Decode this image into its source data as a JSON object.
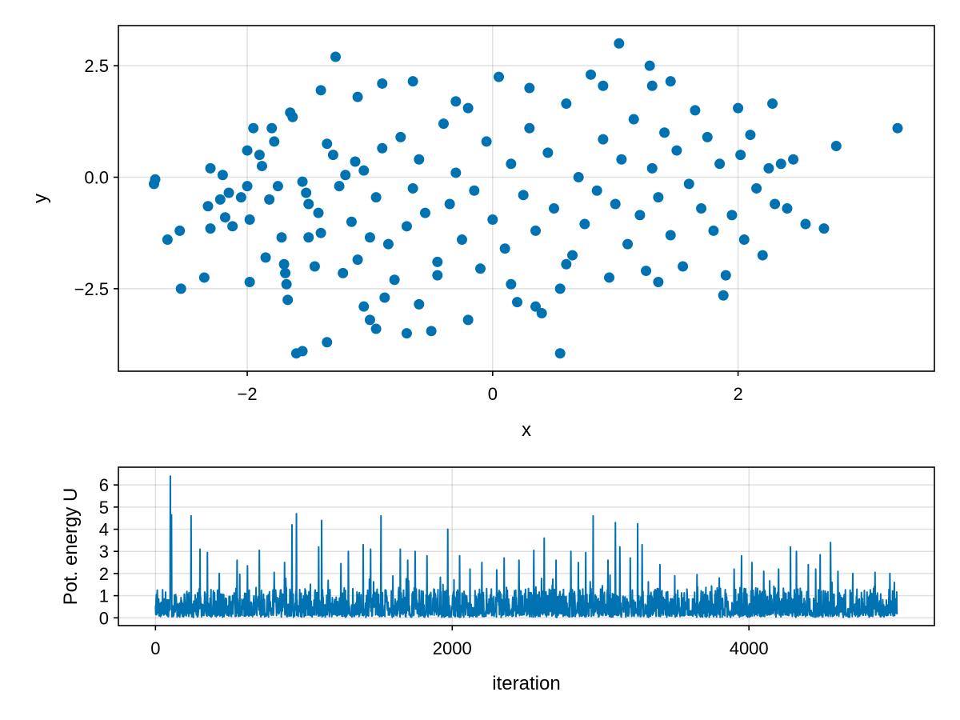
{
  "chart_data": [
    {
      "type": "scatter",
      "xlabel": "x",
      "ylabel": "y",
      "xlim": [
        -3.05,
        3.6
      ],
      "ylim": [
        -4.35,
        3.4
      ],
      "xticks": [
        -2,
        0,
        2
      ],
      "xtick_labels": [
        "−2",
        "0",
        "2"
      ],
      "yticks": [
        -2.5,
        0.0,
        2.5
      ],
      "ytick_labels": [
        "−2.5",
        "0.0",
        "2.5"
      ],
      "grid": true,
      "color": "#0072b2",
      "points": [
        [
          -2.75,
          -0.05
        ],
        [
          -2.76,
          -0.15
        ],
        [
          -2.65,
          -1.4
        ],
        [
          -2.55,
          -1.2
        ],
        [
          -2.54,
          -2.5
        ],
        [
          -2.35,
          -2.25
        ],
        [
          -2.32,
          -0.65
        ],
        [
          -2.3,
          0.2
        ],
        [
          -2.3,
          -1.15
        ],
        [
          -2.22,
          -0.5
        ],
        [
          -2.2,
          0.05
        ],
        [
          -2.18,
          -0.9
        ],
        [
          -2.15,
          -0.35
        ],
        [
          -2.12,
          -1.1
        ],
        [
          -2.05,
          -0.45
        ],
        [
          -2.0,
          -0.2
        ],
        [
          -2.0,
          0.6
        ],
        [
          -1.98,
          -0.95
        ],
        [
          -1.98,
          -2.35
        ],
        [
          -1.95,
          1.1
        ],
        [
          -1.9,
          0.5
        ],
        [
          -1.88,
          0.25
        ],
        [
          -1.85,
          -1.8
        ],
        [
          -1.82,
          -0.5
        ],
        [
          -1.8,
          1.1
        ],
        [
          -1.78,
          0.8
        ],
        [
          -1.75,
          -0.2
        ],
        [
          -1.72,
          -1.35
        ],
        [
          -1.7,
          -1.95
        ],
        [
          -1.69,
          -2.15
        ],
        [
          -1.68,
          -2.4
        ],
        [
          -1.67,
          -2.75
        ],
        [
          -1.65,
          1.45
        ],
        [
          -1.63,
          1.35
        ],
        [
          -1.6,
          -3.95
        ],
        [
          -1.55,
          -3.9
        ],
        [
          -1.55,
          -0.1
        ],
        [
          -1.52,
          -0.35
        ],
        [
          -1.5,
          -0.6
        ],
        [
          -1.5,
          -1.35
        ],
        [
          -1.45,
          -2.0
        ],
        [
          -1.42,
          -0.8
        ],
        [
          -1.4,
          -1.25
        ],
        [
          -1.35,
          -3.7
        ],
        [
          -1.35,
          0.75
        ],
        [
          -1.3,
          0.5
        ],
        [
          -1.25,
          -0.2
        ],
        [
          -1.22,
          -2.15
        ],
        [
          -1.2,
          0.05
        ],
        [
          -1.15,
          -1.0
        ],
        [
          -1.12,
          0.35
        ],
        [
          -1.1,
          -1.85
        ],
        [
          -1.05,
          0.15
        ],
        [
          -1.0,
          -1.35
        ],
        [
          -0.95,
          -0.45
        ],
        [
          -0.9,
          0.65
        ],
        [
          -0.88,
          -2.7
        ],
        [
          -0.85,
          -1.5
        ],
        [
          -0.8,
          -2.3
        ],
        [
          -0.75,
          0.9
        ],
        [
          -0.7,
          -1.1
        ],
        [
          -0.65,
          -0.25
        ],
        [
          -0.6,
          0.4
        ],
        [
          -0.55,
          -0.8
        ],
        [
          -0.5,
          -3.45
        ],
        [
          -0.45,
          -1.9
        ],
        [
          -0.4,
          1.2
        ],
        [
          -0.35,
          -0.6
        ],
        [
          -0.3,
          0.1
        ],
        [
          -0.25,
          -1.4
        ],
        [
          -0.2,
          1.55
        ],
        [
          -0.15,
          -0.3
        ],
        [
          -0.1,
          -2.05
        ],
        [
          -0.05,
          0.8
        ],
        [
          0.0,
          -0.95
        ],
        [
          0.05,
          2.25
        ],
        [
          0.1,
          -1.6
        ],
        [
          0.15,
          0.3
        ],
        [
          0.2,
          -2.8
        ],
        [
          0.25,
          -0.4
        ],
        [
          0.3,
          1.1
        ],
        [
          0.35,
          -1.2
        ],
        [
          0.4,
          -3.05
        ],
        [
          0.45,
          0.55
        ],
        [
          0.5,
          -0.7
        ],
        [
          0.55,
          -3.95
        ],
        [
          0.6,
          1.65
        ],
        [
          0.65,
          -1.75
        ],
        [
          0.7,
          0.0
        ],
        [
          0.75,
          -1.05
        ],
        [
          0.8,
          2.3
        ],
        [
          0.85,
          -0.3
        ],
        [
          0.9,
          0.85
        ],
        [
          0.95,
          -2.25
        ],
        [
          1.0,
          -0.6
        ],
        [
          1.03,
          3.0
        ],
        [
          1.05,
          0.4
        ],
        [
          1.1,
          -1.5
        ],
        [
          1.15,
          1.3
        ],
        [
          1.2,
          -0.85
        ],
        [
          1.25,
          -2.1
        ],
        [
          1.28,
          2.5
        ],
        [
          1.3,
          0.2
        ],
        [
          1.35,
          -0.45
        ],
        [
          1.4,
          1.0
        ],
        [
          1.45,
          -1.3
        ],
        [
          1.5,
          0.6
        ],
        [
          1.55,
          -2.0
        ],
        [
          1.6,
          -0.15
        ],
        [
          1.65,
          1.5
        ],
        [
          1.7,
          -0.7
        ],
        [
          1.75,
          0.9
        ],
        [
          1.8,
          -1.2
        ],
        [
          1.85,
          0.3
        ],
        [
          1.88,
          -2.65
        ],
        [
          1.9,
          -2.2
        ],
        [
          1.95,
          -0.85
        ],
        [
          2.0,
          1.55
        ],
        [
          2.02,
          0.5
        ],
        [
          2.05,
          -1.4
        ],
        [
          2.1,
          0.95
        ],
        [
          2.15,
          -0.25
        ],
        [
          2.2,
          -1.75
        ],
        [
          2.25,
          0.2
        ],
        [
          2.28,
          1.65
        ],
        [
          2.3,
          -0.6
        ],
        [
          2.35,
          0.3
        ],
        [
          2.4,
          -0.7
        ],
        [
          2.45,
          0.4
        ],
        [
          2.55,
          -1.05
        ],
        [
          2.7,
          -1.15
        ],
        [
          2.8,
          0.7
        ],
        [
          3.3,
          1.1
        ],
        [
          -1.28,
          2.7
        ],
        [
          -1.4,
          1.95
        ],
        [
          -0.9,
          2.1
        ],
        [
          -0.3,
          1.7
        ],
        [
          0.3,
          2.0
        ],
        [
          -1.1,
          1.8
        ],
        [
          -0.65,
          2.15
        ],
        [
          0.9,
          2.05
        ],
        [
          1.3,
          2.05
        ],
        [
          1.45,
          2.15
        ],
        [
          -1.0,
          -3.2
        ],
        [
          -0.7,
          -3.5
        ],
        [
          -0.2,
          -3.2
        ],
        [
          -0.95,
          -3.4
        ],
        [
          0.35,
          -2.9
        ],
        [
          0.6,
          -1.95
        ],
        [
          -1.05,
          -2.9
        ],
        [
          0.15,
          -2.4
        ],
        [
          0.55,
          -2.5
        ],
        [
          -0.6,
          -2.85
        ],
        [
          -0.45,
          -2.2
        ],
        [
          1.35,
          -2.35
        ]
      ]
    },
    {
      "type": "line",
      "xlabel": "iteration",
      "ylabel": "Pot. energy U",
      "xlim": [
        -250,
        5250
      ],
      "ylim": [
        -0.35,
        6.8
      ],
      "xticks": [
        0,
        2000,
        4000
      ],
      "xtick_labels": [
        "0",
        "2000",
        "4000"
      ],
      "yticks": [
        0,
        1,
        2,
        3,
        4,
        5,
        6
      ],
      "ytick_labels": [
        "0",
        "1",
        "2",
        "3",
        "4",
        "5",
        "6"
      ],
      "grid": true,
      "color": "#0072b2",
      "n_iterations": 5000,
      "spikes": [
        [
          100,
          6.4
        ],
        [
          108,
          4.65
        ],
        [
          125,
          3.8
        ],
        [
          240,
          4.6
        ],
        [
          300,
          3.1
        ],
        [
          350,
          2.95
        ],
        [
          430,
          2.0
        ],
        [
          550,
          2.6
        ],
        [
          620,
          2.35
        ],
        [
          700,
          3.05
        ],
        [
          800,
          2.05
        ],
        [
          870,
          2.5
        ],
        [
          920,
          4.2
        ],
        [
          950,
          4.7
        ],
        [
          975,
          2.9
        ],
        [
          1100,
          3.2
        ],
        [
          1120,
          4.4
        ],
        [
          1250,
          2.45
        ],
        [
          1300,
          3.0
        ],
        [
          1400,
          3.3
        ],
        [
          1450,
          3.1
        ],
        [
          1520,
          4.6
        ],
        [
          1650,
          3.1
        ],
        [
          1700,
          2.6
        ],
        [
          1750,
          3.0
        ],
        [
          1830,
          2.8
        ],
        [
          1970,
          4.0
        ],
        [
          2050,
          2.8
        ],
        [
          2120,
          2.2
        ],
        [
          2200,
          2.5
        ],
        [
          2350,
          2.7
        ],
        [
          2450,
          2.6
        ],
        [
          2550,
          3.05
        ],
        [
          2620,
          3.6
        ],
        [
          2700,
          2.6
        ],
        [
          2800,
          3.0
        ],
        [
          2850,
          2.5
        ],
        [
          2900,
          2.95
        ],
        [
          2950,
          4.6
        ],
        [
          3050,
          2.6
        ],
        [
          3100,
          4.3
        ],
        [
          3130,
          3.2
        ],
        [
          3200,
          2.7
        ],
        [
          3250,
          4.25
        ],
        [
          3280,
          3.3
        ],
        [
          3400,
          2.4
        ],
        [
          3500,
          1.9
        ],
        [
          3650,
          1.95
        ],
        [
          3800,
          1.8
        ],
        [
          3900,
          2.2
        ],
        [
          3950,
          2.8
        ],
        [
          4020,
          2.5
        ],
        [
          4100,
          2.1
        ],
        [
          4200,
          2.2
        ],
        [
          4280,
          3.2
        ],
        [
          4320,
          3.0
        ],
        [
          4400,
          2.4
        ],
        [
          4450,
          2.2
        ],
        [
          4480,
          2.85
        ],
        [
          4550,
          3.4
        ],
        [
          4600,
          2.1
        ],
        [
          4700,
          2.0
        ],
        [
          4850,
          2.05
        ],
        [
          4950,
          2.0
        ],
        [
          4980,
          1.6
        ]
      ]
    }
  ]
}
